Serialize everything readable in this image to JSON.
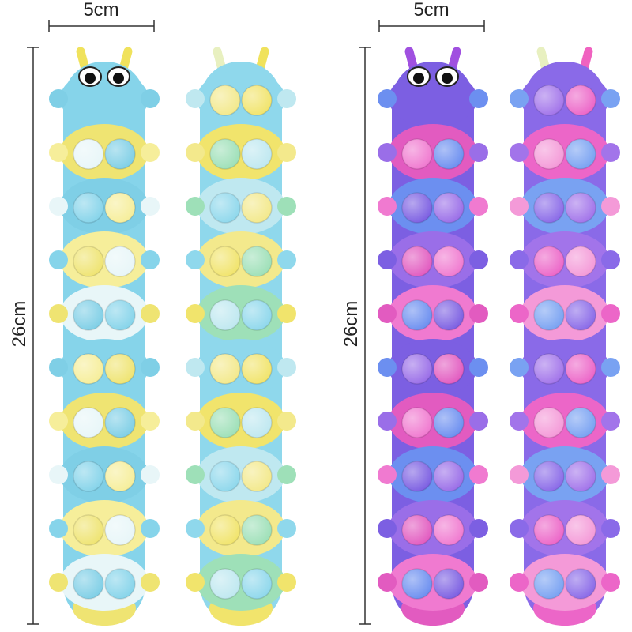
{
  "left": {
    "width_label": "5cm",
    "height_label": "26cm"
  },
  "right": {
    "width_label": "5cm",
    "height_label": "26cm"
  }
}
